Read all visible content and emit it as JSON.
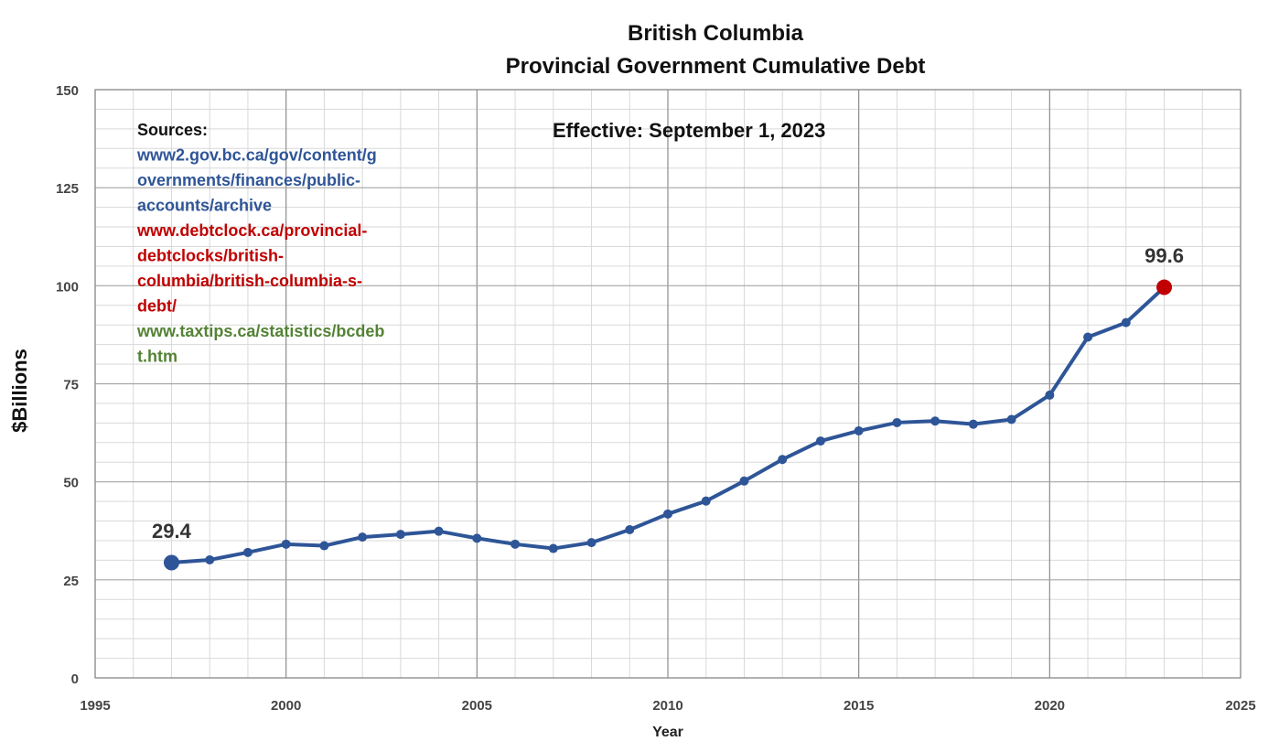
{
  "chart_data": {
    "type": "line",
    "title_line1": "British Columbia",
    "title_line2": "Provincial Government Cumulative Debt",
    "xlabel": "Year",
    "ylabel": "$Billions",
    "xlim": [
      1995,
      2025
    ],
    "ylim": [
      0,
      150
    ],
    "x_major_ticks": [
      1995,
      2000,
      2005,
      2010,
      2015,
      2020,
      2025
    ],
    "x_minor_step": 1,
    "y_major_ticks": [
      0,
      25,
      50,
      75,
      100,
      125,
      150
    ],
    "y_minor_step": 5,
    "grid": true,
    "series": [
      {
        "color": "#2E5597",
        "x": [
          1997,
          1998,
          1999,
          2000,
          2001,
          2002,
          2003,
          2004,
          2005,
          2006,
          2007,
          2008,
          2009,
          2010,
          2011,
          2012,
          2013,
          2014,
          2015,
          2016,
          2017,
          2018,
          2019,
          2020,
          2021,
          2022,
          2023
        ],
        "y": [
          29.4,
          30.1,
          32.0,
          34.1,
          33.7,
          35.9,
          36.6,
          37.4,
          35.6,
          34.1,
          33.0,
          34.5,
          37.8,
          41.8,
          45.1,
          50.2,
          55.7,
          60.4,
          63.0,
          65.1,
          65.5,
          64.7,
          65.9,
          72.1,
          86.9,
          90.6,
          99.6
        ]
      }
    ],
    "highlight_first": {
      "label": "29.4",
      "color": "#2E5597"
    },
    "highlight_last": {
      "label": "99.6",
      "color": "#C00000"
    },
    "annotation_effective": "Effective: September 1, 2023",
    "sources": {
      "heading": "Sources:",
      "heading_color": "#111111",
      "groups": [
        {
          "color": "#2F5597",
          "lines": [
            "www2.gov.bc.ca/gov/content/g",
            "overnments/finances/public-",
            "accounts/archive"
          ]
        },
        {
          "color": "#C00000",
          "lines": [
            "www.debtclock.ca/provincial-",
            "debtclocks/british-",
            "columbia/british-columbia-s-",
            "debt/"
          ]
        },
        {
          "color": "#548235",
          "lines": [
            "www.taxtips.ca/statistics/bcdeb",
            "t.htm"
          ]
        }
      ]
    }
  }
}
